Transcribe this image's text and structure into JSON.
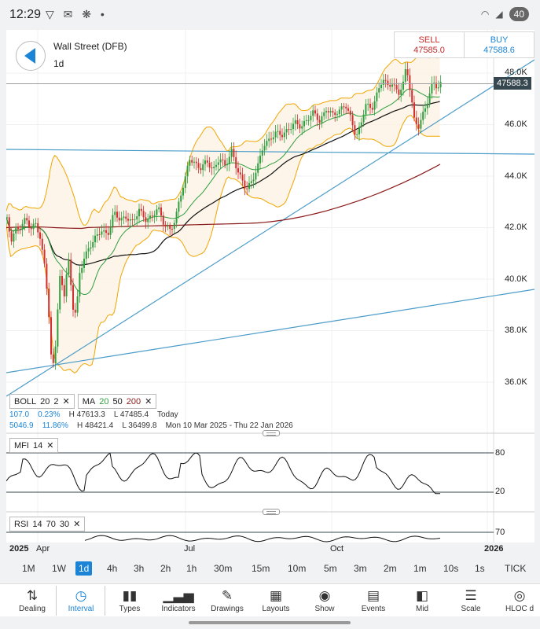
{
  "status_bar": {
    "time": "12:29",
    "icons": "▽ ✉ ❋ •",
    "battery": "40"
  },
  "header": {
    "title": "Wall Street (DFB)",
    "period": "1d",
    "sell": {
      "label": "SELL",
      "price": "47585.0"
    },
    "buy": {
      "label": "BUY",
      "price": "47588.6"
    }
  },
  "price_axis": {
    "labels": [
      "48.0K",
      "46.0K",
      "44.0K",
      "42.0K",
      "40.0K",
      "38.0K",
      "36.0K"
    ],
    "current_price": "47588.3"
  },
  "indicators": {
    "boll": {
      "name": "BOLL",
      "p1": "20",
      "p2": "2"
    },
    "ma": {
      "name": "MA",
      "p1": "20",
      "p2": "50",
      "p3": "200"
    },
    "stats": {
      "change": "107.0",
      "change_pct": "0.23%",
      "high_today": "H 47613.3",
      "low_today": "L 47485.4",
      "today": "Today",
      "range_change": "5046.9",
      "range_pct": "11.86%",
      "high_range": "H 48421.4",
      "low_range": "L 36499.8",
      "range_dates": "Mon 10 Mar 2025 - Thu 22 Jan 2026"
    },
    "mfi": {
      "name": "MFI",
      "p1": "14",
      "levels": [
        "80",
        "20"
      ]
    },
    "rsi": {
      "name": "RSI",
      "p1": "14",
      "p2": "70",
      "p3": "30",
      "levels": [
        "70"
      ]
    }
  },
  "time_axis": [
    "2025",
    "Apr",
    "Jul",
    "Oct",
    "2026"
  ],
  "timeframes": [
    "1M",
    "1W",
    "1d",
    "4h",
    "3h",
    "2h",
    "1h",
    "30m",
    "15m",
    "10m",
    "5m",
    "3m",
    "2m",
    "1m",
    "10s",
    "1s",
    "TICK"
  ],
  "active_timeframe": "1d",
  "toolbar": [
    {
      "label": "Dealing",
      "icon": "dealing-icon"
    },
    {
      "label": "Interval",
      "icon": "clock-icon"
    },
    {
      "label": "Types",
      "icon": "candles-icon"
    },
    {
      "label": "Indicators",
      "icon": "bar-chart-icon"
    },
    {
      "label": "Drawings",
      "icon": "pencil-icon"
    },
    {
      "label": "Layouts",
      "icon": "layout-icon"
    },
    {
      "label": "Show",
      "icon": "eye-icon"
    },
    {
      "label": "Events",
      "icon": "calendar-icon"
    },
    {
      "label": "Mid",
      "icon": "mid-icon"
    },
    {
      "label": "Scale",
      "icon": "ruler-icon"
    },
    {
      "label": "HLOC d",
      "icon": "hloc-icon"
    }
  ],
  "active_tool": "Interval",
  "colors": {
    "accent": "#1b84d6",
    "up": "#2e9e3e",
    "down": "#d32f2f",
    "sell": "#c62828",
    "boll": "#f0a500",
    "ma50": "#111111",
    "ma200": "#8b1a1a"
  }
}
